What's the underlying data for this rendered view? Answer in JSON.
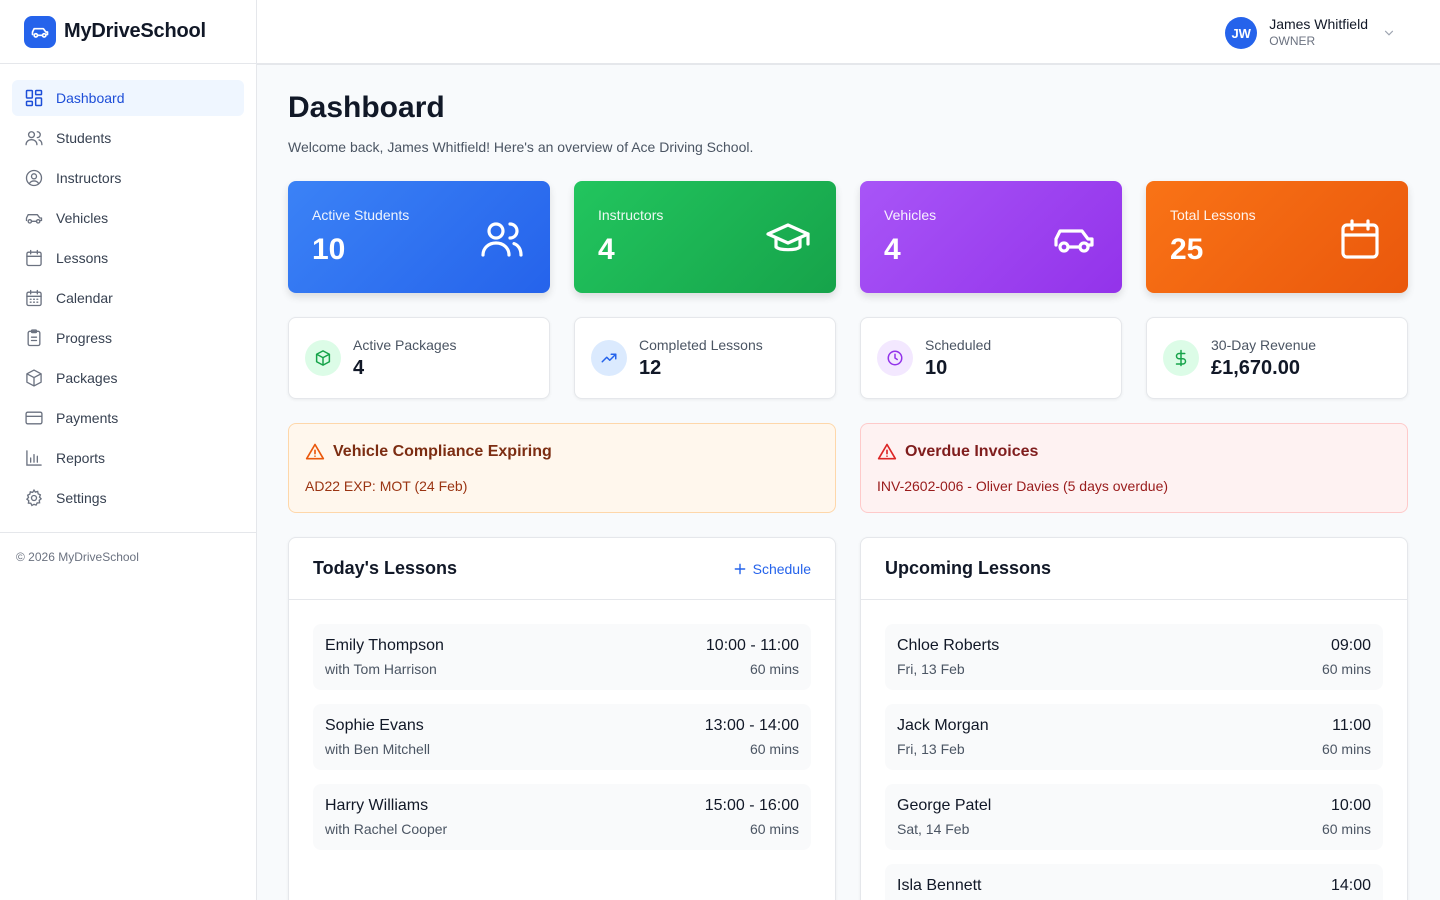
{
  "brand": {
    "name": "MyDriveSchool",
    "icon": "car-icon",
    "color": "#2563eb"
  },
  "sidebar": {
    "items": [
      {
        "label": "Dashboard",
        "icon": "dashboard-icon",
        "active": true
      },
      {
        "label": "Students",
        "icon": "users-icon"
      },
      {
        "label": "Instructors",
        "icon": "user-circle-icon"
      },
      {
        "label": "Vehicles",
        "icon": "car-icon"
      },
      {
        "label": "Lessons",
        "icon": "calendar-icon"
      },
      {
        "label": "Calendar",
        "icon": "calendar-grid-icon"
      },
      {
        "label": "Progress",
        "icon": "clipboard-icon"
      },
      {
        "label": "Packages",
        "icon": "package-icon"
      },
      {
        "label": "Payments",
        "icon": "credit-card-icon"
      },
      {
        "label": "Reports",
        "icon": "bar-chart-icon"
      },
      {
        "label": "Settings",
        "icon": "gear-icon"
      }
    ],
    "footer": "© 2026 MyDriveSchool"
  },
  "header": {
    "user": {
      "initials": "JW",
      "name": "James Whitfield",
      "role": "OWNER"
    }
  },
  "page": {
    "title": "Dashboard",
    "subtitle": "Welcome back, James Whitfield! Here's an overview of Ace Driving School."
  },
  "stats": [
    {
      "label": "Active Students",
      "value": "10",
      "icon": "users-icon",
      "color": "#2563eb"
    },
    {
      "label": "Instructors",
      "value": "4",
      "icon": "graduation-cap-icon",
      "color": "#16a34a"
    },
    {
      "label": "Vehicles",
      "value": "4",
      "icon": "car-icon",
      "color": "#9333ea"
    },
    {
      "label": "Total Lessons",
      "value": "25",
      "icon": "calendar-icon",
      "color": "#ea580c"
    }
  ],
  "minis": [
    {
      "label": "Active Packages",
      "value": "4",
      "icon": "package-icon"
    },
    {
      "label": "Completed Lessons",
      "value": "12",
      "icon": "trending-up-icon"
    },
    {
      "label": "Scheduled",
      "value": "10",
      "icon": "clock-icon"
    },
    {
      "label": "30-Day Revenue",
      "value": "£1,670.00",
      "icon": "dollar-icon"
    }
  ],
  "alerts": {
    "compliance": {
      "title": "Vehicle Compliance Expiring",
      "text": "AD22 EXP: MOT (24 Feb)"
    },
    "overdue": {
      "title": "Overdue Invoices",
      "text": "INV-2602-006 - Oliver Davies (5 days overdue)"
    }
  },
  "today": {
    "title": "Today's Lessons",
    "action": "Schedule",
    "lessons": [
      {
        "name": "Emily Thompson",
        "sub": "with Tom Harrison",
        "time": "10:00 - 11:00",
        "duration": "60 mins"
      },
      {
        "name": "Sophie Evans",
        "sub": "with Ben Mitchell",
        "time": "13:00 - 14:00",
        "duration": "60 mins"
      },
      {
        "name": "Harry Williams",
        "sub": "with Rachel Cooper",
        "time": "15:00 - 16:00",
        "duration": "60 mins"
      }
    ]
  },
  "upcoming": {
    "title": "Upcoming Lessons",
    "lessons": [
      {
        "name": "Chloe Roberts",
        "sub": "Fri, 13 Feb",
        "time": "09:00",
        "duration": "60 mins"
      },
      {
        "name": "Jack Morgan",
        "sub": "Fri, 13 Feb",
        "time": "11:00",
        "duration": "60 mins"
      },
      {
        "name": "George Patel",
        "sub": "Sat, 14 Feb",
        "time": "10:00",
        "duration": "60 mins"
      },
      {
        "name": "Isla Bennett",
        "sub": "",
        "time": "14:00",
        "duration": ""
      }
    ]
  }
}
